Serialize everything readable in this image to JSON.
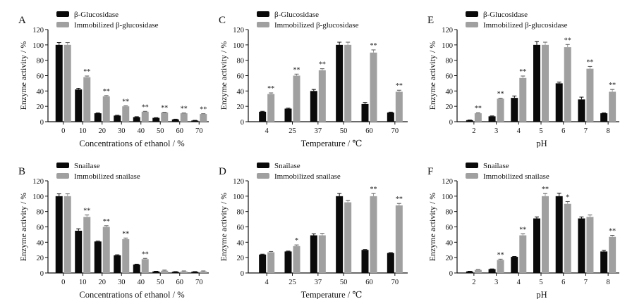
{
  "colors": {
    "free": "#0a0a0a",
    "immobilized": "#a0a0a0",
    "axis": "#111111"
  },
  "chart_data": [
    {
      "panel": "A",
      "type": "bar",
      "xlabel": "Concentrations of ethanol / %",
      "ylabel": "Enzyme activity / %",
      "ylim": [
        0,
        120
      ],
      "yticks": [
        0,
        20,
        40,
        60,
        80,
        100,
        120
      ],
      "categories": [
        "0",
        "10",
        "20",
        "30",
        "40",
        "50",
        "60",
        "70"
      ],
      "legend_position": "top-left",
      "series": [
        {
          "name": "β-Glucosidase",
          "values": [
            100,
            42,
            11,
            8,
            6,
            5,
            3,
            1.5
          ],
          "errors": [
            3,
            1.5,
            0.5,
            0.5,
            0.5,
            0.3,
            0.3,
            0.3
          ]
        },
        {
          "name": "Immobilized β-glucosidase",
          "values": [
            100,
            58,
            33,
            20,
            13,
            12,
            11,
            10
          ],
          "errors": [
            3,
            1.5,
            1,
            0.7,
            0.5,
            0.4,
            0.4,
            0.4
          ]
        }
      ],
      "significance": [
        "",
        "**",
        "**",
        "**",
        "**",
        "**",
        "**",
        "**"
      ]
    },
    {
      "panel": "C",
      "type": "bar",
      "xlabel": "Temperature / ℃",
      "ylabel": "Enzyme activity / %",
      "ylim": [
        0,
        120
      ],
      "yticks": [
        0,
        20,
        40,
        60,
        80,
        100,
        120
      ],
      "categories": [
        "4",
        "25",
        "37",
        "50",
        "60",
        "70"
      ],
      "legend_position": "top-left",
      "series": [
        {
          "name": "β-Glucosidase",
          "values": [
            13,
            17,
            40,
            100,
            23,
            12
          ],
          "errors": [
            0.5,
            0.7,
            2,
            3.5,
            2,
            0.5
          ]
        },
        {
          "name": "Immobilized β-glucosidase",
          "values": [
            36,
            60,
            67,
            100,
            90,
            39
          ],
          "errors": [
            1.5,
            2,
            2,
            3.5,
            3.5,
            2
          ]
        }
      ],
      "significance": [
        "**",
        "**",
        "**",
        "",
        "**",
        "**"
      ]
    },
    {
      "panel": "E",
      "type": "bar",
      "xlabel": "pH",
      "ylabel": "Enzyme activity / %",
      "ylim": [
        0,
        120
      ],
      "yticks": [
        0,
        20,
        40,
        60,
        80,
        100,
        120
      ],
      "categories": [
        "2",
        "3",
        "4",
        "5",
        "6",
        "7",
        "8"
      ],
      "legend_position": "top-left",
      "series": [
        {
          "name": "β-Glucosidase",
          "values": [
            2,
            7,
            31,
            100,
            50,
            29,
            11
          ],
          "errors": [
            0.3,
            0.5,
            2.5,
            4.5,
            1.5,
            3,
            0.5
          ]
        },
        {
          "name": "Immobilized β-glucosidase",
          "values": [
            11,
            30,
            57,
            100,
            97,
            69,
            39
          ],
          "errors": [
            0.7,
            0.7,
            2.5,
            3.5,
            3.5,
            3,
            3
          ]
        }
      ],
      "significance": [
        "**",
        "**",
        "**",
        "",
        "**",
        "**",
        "**"
      ]
    },
    {
      "panel": "B",
      "type": "bar",
      "xlabel": "Concentrations of ethanol / %",
      "ylabel": "Enzyme activity / %",
      "ylim": [
        0,
        120
      ],
      "yticks": [
        0,
        20,
        40,
        60,
        80,
        100,
        120
      ],
      "categories": [
        "0",
        "10",
        "20",
        "30",
        "40",
        "50",
        "60",
        "70"
      ],
      "legend_position": "top-left",
      "series": [
        {
          "name": "Snailase",
          "values": [
            100,
            55,
            41,
            23,
            11,
            2,
            1.5,
            1.5
          ],
          "errors": [
            3,
            2.5,
            0.5,
            0.7,
            0.5,
            0.3,
            0.3,
            0.3
          ]
        },
        {
          "name": "Immobilized snailase",
          "values": [
            100,
            73,
            60,
            44,
            18,
            3,
            2,
            2
          ],
          "errors": [
            3,
            2.5,
            1.5,
            1.5,
            1,
            0.7,
            0.7,
            0.7
          ]
        }
      ],
      "significance": [
        "",
        "**",
        "**",
        "**",
        "**",
        "",
        "",
        ""
      ]
    },
    {
      "panel": "D",
      "type": "bar",
      "xlabel": "Temperature / ℃",
      "ylabel": "Enzyme activity / %",
      "ylim": [
        0,
        120
      ],
      "yticks": [
        0,
        20,
        40,
        60,
        80,
        100,
        120
      ],
      "categories": [
        "4",
        "25",
        "37",
        "50",
        "60",
        "70"
      ],
      "legend_position": "top-left",
      "series": [
        {
          "name": "Snailase",
          "values": [
            24,
            28,
            49,
            100,
            30,
            26
          ],
          "errors": [
            0.5,
            0.5,
            2,
            3.5,
            0.5,
            0.5
          ]
        },
        {
          "name": "Immobilized snailase",
          "values": [
            27,
            35,
            49,
            92,
            100,
            88
          ],
          "errors": [
            1,
            1.5,
            2.5,
            2.5,
            3.5,
            2.5
          ]
        }
      ],
      "significance": [
        "",
        "*",
        "",
        "",
        "**",
        "**"
      ]
    },
    {
      "panel": "F",
      "type": "bar",
      "xlabel": "pH",
      "ylabel": "Enzyme activity / %",
      "ylim": [
        0,
        120
      ],
      "yticks": [
        0,
        20,
        40,
        60,
        80,
        100,
        120
      ],
      "categories": [
        "2",
        "3",
        "4",
        "5",
        "6",
        "7",
        "8"
      ],
      "legend_position": "top-left",
      "series": [
        {
          "name": "Snailase",
          "values": [
            2,
            5,
            21,
            71,
            100,
            71,
            28
          ],
          "errors": [
            0.3,
            0.3,
            0.5,
            2,
            4,
            2,
            1.5
          ]
        },
        {
          "name": "Immobilized snailase",
          "values": [
            4,
            17,
            49,
            100,
            90,
            73,
            47
          ],
          "errors": [
            0.5,
            1,
            2,
            3.5,
            3,
            2.5,
            2
          ]
        }
      ],
      "significance": [
        "",
        "**",
        "**",
        "**",
        "*",
        "",
        "**"
      ]
    }
  ]
}
